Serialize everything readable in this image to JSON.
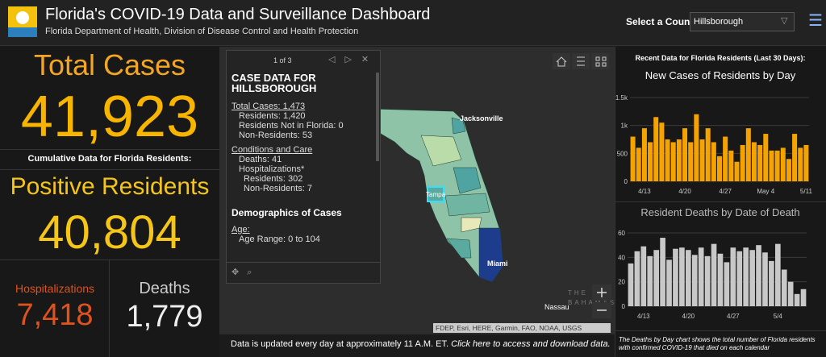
{
  "header": {
    "title": "Florida's COVID-19 Data and Surveillance Dashboard",
    "subtitle": "Florida Department of Health, Division of Disease Control and Health Protection",
    "county_label": "Select a County",
    "county": "Hillsborough"
  },
  "summary": {
    "total_cases_label": "Total Cases",
    "total_cases": "41,923",
    "cumulative_note": "Cumulative Data for Florida Residents:",
    "positive_label": "Positive Residents",
    "positive": "40,804",
    "hospitalizations_label": "Hospitalizations",
    "hospitalizations": "7,418",
    "deaths_label": "Deaths",
    "deaths": "1,779"
  },
  "popup": {
    "pager": "1 of 3",
    "title": "CASE DATA FOR HILLSBOROUGH",
    "total_heading": "Total Cases: 1,473",
    "total_lines": [
      "Residents: 1,420",
      "Residents Not in Florida: 0",
      "Non-Residents: 53"
    ],
    "care_heading": "Conditions and Care",
    "care_lines": [
      "Deaths: 41",
      "Hospitalizations*"
    ],
    "hosp_lines": [
      "Residents: 302",
      "Non-Residents: 7"
    ],
    "demo_heading": "Demographics of Cases",
    "age_heading": "Age:",
    "age_lines": [
      "Age Range: 0 to 104"
    ]
  },
  "map": {
    "labels": [
      "Jacksonville",
      "Tampa",
      "Miami",
      "Nassau",
      "THE",
      "BAHAMAS"
    ],
    "attribution": "FDEP, Esri, HERE, Garmin, FAO, NOAA, USGS"
  },
  "footer": {
    "update_note": "Data is updated every day at approximately 11 A.M. ET.",
    "link": "Click here to access and download data."
  },
  "right_panel": {
    "heading": "Recent Data for Florida Residents (Last 30 Days):",
    "footnote": "The Deaths by Day chart shows the total number of Florida residents with confirmed COVID-19 that died on each calendar"
  },
  "chart_data": [
    {
      "type": "bar",
      "title": "New Cases of Residents by Day",
      "categories": [
        null,
        null,
        "4/13",
        null,
        null,
        null,
        null,
        null,
        null,
        "4/20",
        null,
        null,
        null,
        null,
        null,
        null,
        "4/27",
        null,
        null,
        null,
        null,
        null,
        null,
        "May 4",
        null,
        null,
        null,
        null,
        null,
        null,
        "5/11"
      ],
      "values": [
        800,
        600,
        950,
        700,
        1150,
        1050,
        750,
        700,
        750,
        950,
        700,
        1200,
        750,
        950,
        700,
        450,
        800,
        550,
        350,
        650,
        950,
        700,
        650,
        850,
        550,
        550,
        600,
        400,
        850,
        600,
        650
      ],
      "color": "#f5a300",
      "ylim": [
        0,
        1500
      ],
      "yticks": [
        0,
        500,
        {
          "value": 1000,
          "label": "1k"
        },
        {
          "value": 1500,
          "label": "1.5k"
        }
      ],
      "grid": true
    },
    {
      "type": "bar",
      "title": "Resident Deaths by Date of Death",
      "categories": [
        null,
        null,
        "4/13",
        null,
        null,
        null,
        null,
        null,
        null,
        "4/20",
        null,
        null,
        null,
        null,
        null,
        null,
        "4/27",
        null,
        null,
        null,
        null,
        null,
        null,
        "5/4",
        null,
        null,
        null,
        null
      ],
      "values": [
        35,
        45,
        49,
        41,
        46,
        56,
        38,
        47,
        48,
        46,
        42,
        48,
        41,
        51,
        43,
        36,
        48,
        45,
        48,
        46,
        50,
        44,
        37,
        51,
        30,
        20,
        10,
        14
      ],
      "color": "#c8c8c8",
      "ylim": [
        0,
        60
      ],
      "yticks": [
        0,
        20,
        40,
        60
      ],
      "grid": true
    }
  ]
}
